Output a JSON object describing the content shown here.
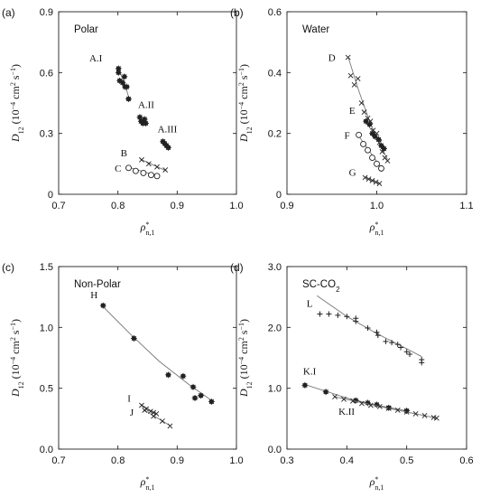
{
  "axis_labels": {
    "y_sym": "D",
    "y_sub": "12",
    "y_units": "(10",
    "y_exp": "−4",
    "y_cm": "cm",
    "y_cm_exp": "2",
    "y_s": "s",
    "y_s_exp": "−1",
    "y_close": ")",
    "x_sym": "ρ",
    "x_sup": "*",
    "x_sub": "n,1"
  },
  "chart_data": [
    {
      "type": "scatter",
      "panel": "(a)",
      "title": "Polar",
      "xlim": [
        0.7,
        1.0
      ],
      "ylim": [
        0,
        0.9
      ],
      "xticks": [
        "0.7",
        "0.8",
        "0.9",
        "1.0"
      ],
      "yticks": [
        "0",
        "0.3",
        "0.6",
        "0.9"
      ],
      "series": [
        {
          "name": "A.I",
          "marker": "star",
          "points": [
            [
              0.801,
              0.62
            ],
            [
              0.801,
              0.6
            ],
            [
              0.803,
              0.56
            ],
            [
              0.808,
              0.55
            ],
            [
              0.811,
              0.58
            ],
            [
              0.812,
              0.53
            ],
            [
              0.815,
              0.53
            ],
            [
              0.818,
              0.47
            ]
          ],
          "fit": [
            [
              0.801,
              0.615
            ],
            [
              0.81,
              0.56
            ],
            [
              0.818,
              0.48
            ]
          ]
        },
        {
          "name": "A.II",
          "marker": "star",
          "points": [
            [
              0.837,
              0.38
            ],
            [
              0.839,
              0.36
            ],
            [
              0.842,
              0.35
            ],
            [
              0.845,
              0.37
            ],
            [
              0.847,
              0.35
            ]
          ],
          "fit": [
            [
              0.837,
              0.385
            ],
            [
              0.845,
              0.355
            ]
          ]
        },
        {
          "name": "A.III",
          "marker": "star",
          "points": [
            [
              0.876,
              0.26
            ],
            [
              0.879,
              0.25
            ],
            [
              0.882,
              0.24
            ],
            [
              0.885,
              0.23
            ]
          ],
          "fit": [
            [
              0.876,
              0.265
            ],
            [
              0.882,
              0.24
            ]
          ]
        },
        {
          "name": "B",
          "marker": "x",
          "points": [
            [
              0.84,
              0.17
            ],
            [
              0.852,
              0.15
            ],
            [
              0.866,
              0.135
            ],
            [
              0.88,
              0.12
            ]
          ],
          "fit": [
            [
              0.838,
              0.173
            ],
            [
              0.882,
              0.115
            ]
          ]
        },
        {
          "name": "C",
          "marker": "circle",
          "points": [
            [
              0.818,
              0.13
            ],
            [
              0.83,
              0.115
            ],
            [
              0.843,
              0.105
            ],
            [
              0.856,
              0.095
            ],
            [
              0.866,
              0.09
            ]
          ],
          "fit": [
            [
              0.816,
              0.135
            ],
            [
              0.868,
              0.09
            ]
          ]
        }
      ]
    },
    {
      "type": "scatter",
      "panel": "(b)",
      "title": "Water",
      "xlim": [
        0.9,
        1.1
      ],
      "ylim": [
        0,
        0.6
      ],
      "xticks": [
        "0.9",
        "1.0",
        "1.1"
      ],
      "yticks": [
        "0",
        "0.2",
        "0.4",
        "0.6"
      ],
      "series": [
        {
          "name": "D",
          "marker": "x",
          "points": [
            [
              0.968,
              0.45
            ],
            [
              0.971,
              0.39
            ],
            [
              0.975,
              0.36
            ],
            [
              0.979,
              0.38
            ],
            [
              0.983,
              0.3
            ],
            [
              0.986,
              0.27
            ],
            [
              0.99,
              0.25
            ],
            [
              0.993,
              0.24
            ],
            [
              0.996,
              0.21
            ],
            [
              1.0,
              0.2
            ],
            [
              1.003,
              0.17
            ],
            [
              1.006,
              0.14
            ],
            [
              1.009,
              0.12
            ],
            [
              1.012,
              0.11
            ]
          ],
          "fit": [
            [
              0.968,
              0.452
            ],
            [
              0.98,
              0.34
            ],
            [
              0.992,
              0.24
            ],
            [
              1.004,
              0.16
            ],
            [
              1.012,
              0.115
            ]
          ]
        },
        {
          "name": "E",
          "marker": "star",
          "points": [
            [
              0.988,
              0.24
            ],
            [
              0.992,
              0.23
            ],
            [
              0.995,
              0.2
            ],
            [
              0.998,
              0.19
            ],
            [
              1.002,
              0.18
            ],
            [
              1.005,
              0.16
            ],
            [
              1.008,
              0.15
            ]
          ],
          "fit": [
            [
              0.986,
              0.245
            ],
            [
              1.008,
              0.15
            ]
          ]
        },
        {
          "name": "F",
          "marker": "circle",
          "points": [
            [
              0.98,
              0.195
            ],
            [
              0.985,
              0.165
            ],
            [
              0.99,
              0.145
            ],
            [
              0.995,
              0.12
            ],
            [
              1.0,
              0.1
            ],
            [
              1.005,
              0.085
            ]
          ],
          "fit": [
            [
              0.978,
              0.2
            ],
            [
              1.006,
              0.082
            ]
          ]
        },
        {
          "name": "G",
          "marker": "x",
          "points": [
            [
              0.987,
              0.055
            ],
            [
              0.991,
              0.05
            ],
            [
              0.995,
              0.045
            ],
            [
              0.999,
              0.04
            ],
            [
              1.003,
              0.035
            ]
          ],
          "fit": [
            [
              0.986,
              0.057
            ],
            [
              1.004,
              0.034
            ]
          ]
        }
      ]
    },
    {
      "type": "scatter",
      "panel": "(c)",
      "title": "Non-Polar",
      "xlim": [
        0.7,
        1.0
      ],
      "ylim": [
        0,
        1.5
      ],
      "xticks": [
        "0.7",
        "0.8",
        "0.9",
        "1.0"
      ],
      "yticks": [
        "0.0",
        "0.5",
        "1.0",
        "1.5"
      ],
      "series": [
        {
          "name": "H",
          "marker": "star",
          "points": [
            [
              0.775,
              1.18
            ],
            [
              0.827,
              0.91
            ],
            [
              0.885,
              0.61
            ],
            [
              0.91,
              0.6
            ],
            [
              0.927,
              0.51
            ],
            [
              0.93,
              0.42
            ],
            [
              0.94,
              0.44
            ],
            [
              0.958,
              0.39
            ]
          ],
          "fit": [
            [
              0.775,
              1.17
            ],
            [
              0.82,
              0.95
            ],
            [
              0.87,
              0.72
            ],
            [
              0.92,
              0.53
            ],
            [
              0.958,
              0.4
            ]
          ]
        },
        {
          "name": "I",
          "marker": "x",
          "points": [
            [
              0.84,
              0.36
            ],
            [
              0.848,
              0.33
            ],
            [
              0.855,
              0.31
            ],
            [
              0.86,
              0.3
            ],
            [
              0.865,
              0.29
            ]
          ],
          "fit": [
            [
              0.838,
              0.37
            ],
            [
              0.866,
              0.285
            ]
          ]
        },
        {
          "name": "J",
          "marker": "x",
          "points": [
            [
              0.845,
              0.32
            ],
            [
              0.86,
              0.27
            ],
            [
              0.875,
              0.23
            ],
            [
              0.888,
              0.19
            ]
          ],
          "fit": [
            [
              0.843,
              0.325
            ],
            [
              0.889,
              0.19
            ]
          ]
        }
      ]
    },
    {
      "type": "scatter",
      "panel": "(d)",
      "title": "SC-CO",
      "title_sub": "2",
      "xlim": [
        0.3,
        0.6
      ],
      "ylim": [
        0,
        3.0
      ],
      "xticks": [
        "0.3",
        "0.4",
        "0.5",
        "0.6"
      ],
      "yticks": [
        "0.0",
        "1.0",
        "2.0",
        "3.0"
      ],
      "series": [
        {
          "name": "L",
          "marker": "plus",
          "points": [
            [
              0.355,
              2.22
            ],
            [
              0.37,
              2.22
            ],
            [
              0.385,
              2.2
            ],
            [
              0.4,
              2.18
            ],
            [
              0.415,
              2.15
            ],
            [
              0.415,
              2.1
            ],
            [
              0.435,
              1.99
            ],
            [
              0.45,
              1.92
            ],
            [
              0.452,
              1.87
            ],
            [
              0.465,
              1.77
            ],
            [
              0.475,
              1.75
            ],
            [
              0.485,
              1.72
            ],
            [
              0.49,
              1.67
            ],
            [
              0.5,
              1.6
            ],
            [
              0.505,
              1.56
            ],
            [
              0.525,
              1.47
            ],
            [
              0.525,
              1.42
            ]
          ],
          "fit": [
            [
              0.35,
              2.52
            ],
            [
              0.4,
              2.18
            ],
            [
              0.45,
              1.9
            ],
            [
              0.5,
              1.65
            ],
            [
              0.525,
              1.52
            ]
          ]
        },
        {
          "name": "K.I",
          "marker": "star",
          "points": [
            [
              0.33,
              1.05
            ],
            [
              0.365,
              0.94
            ],
            [
              0.415,
              0.8
            ],
            [
              0.435,
              0.76
            ],
            [
              0.45,
              0.73
            ],
            [
              0.47,
              0.68
            ],
            [
              0.5,
              0.63
            ]
          ],
          "fit": [
            [
              0.33,
              1.06
            ],
            [
              0.4,
              0.84
            ],
            [
              0.45,
              0.72
            ],
            [
              0.5,
              0.63
            ]
          ]
        },
        {
          "name": "K.II",
          "marker": "x",
          "points": [
            [
              0.38,
              0.86
            ],
            [
              0.395,
              0.82
            ],
            [
              0.41,
              0.79
            ],
            [
              0.425,
              0.75
            ],
            [
              0.44,
              0.72
            ],
            [
              0.455,
              0.7
            ],
            [
              0.47,
              0.67
            ],
            [
              0.485,
              0.64
            ],
            [
              0.5,
              0.61
            ],
            [
              0.515,
              0.58
            ],
            [
              0.53,
              0.55
            ],
            [
              0.545,
              0.52
            ],
            [
              0.55,
              0.51
            ]
          ],
          "fit": [
            [
              0.38,
              0.86
            ],
            [
              0.46,
              0.69
            ],
            [
              0.55,
              0.51
            ]
          ]
        }
      ]
    }
  ]
}
